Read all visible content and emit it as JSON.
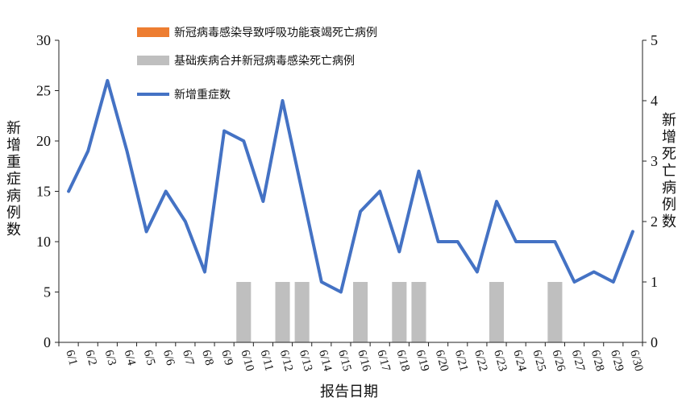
{
  "chart_data": {
    "type": "bar+line",
    "categories": [
      "6/1",
      "6/2",
      "6/3",
      "6/4",
      "6/5",
      "6/6",
      "6/7",
      "6/8",
      "6/9",
      "6/10",
      "6/11",
      "6/12",
      "6/13",
      "6/14",
      "6/15",
      "6/16",
      "6/17",
      "6/18",
      "6/19",
      "6/20",
      "6/21",
      "6/22",
      "6/23",
      "6/24",
      "6/25",
      "6/26",
      "6/27",
      "6/28",
      "6/29",
      "6/30"
    ],
    "series": [
      {
        "name": "新冠病毒感染导致呼吸功能衰竭死亡病例",
        "type": "bar",
        "axis": "right",
        "color": "#ED7D31",
        "values": [
          0,
          0,
          0,
          0,
          0,
          0,
          0,
          0,
          0,
          0,
          0,
          0,
          0,
          0,
          0,
          0,
          0,
          0,
          0,
          0,
          0,
          0,
          0,
          0,
          0,
          0,
          0,
          0,
          0,
          0
        ]
      },
      {
        "name": "基础疾病合并新冠病毒感染死亡病例",
        "type": "bar",
        "axis": "right",
        "color": "#BFBFBF",
        "values": [
          0,
          0,
          0,
          0,
          0,
          0,
          0,
          0,
          0,
          1,
          0,
          1,
          1,
          0,
          0,
          1,
          0,
          1,
          1,
          0,
          0,
          0,
          1,
          0,
          0,
          1,
          0,
          0,
          0,
          0
        ]
      },
      {
        "name": "新增重症数",
        "type": "line",
        "axis": "left",
        "color": "#4472C4",
        "values": [
          15,
          19,
          26,
          19,
          11,
          15,
          12,
          7,
          21,
          20,
          14,
          24,
          15,
          6,
          5,
          13,
          15,
          9,
          17,
          10,
          10,
          7,
          14,
          10,
          10,
          10,
          6,
          7,
          6,
          11
        ]
      }
    ],
    "ylabel": "新增重症病例数",
    "ylim": [
      0,
      30
    ],
    "yticks": [
      0,
      5,
      10,
      15,
      20,
      25,
      30
    ],
    "y2label": "新增死亡病例数",
    "y2lim": [
      0,
      5
    ],
    "y2ticks": [
      0,
      1,
      2,
      3,
      4,
      5
    ],
    "xlabel": "报告日期",
    "legend": "top-center"
  }
}
